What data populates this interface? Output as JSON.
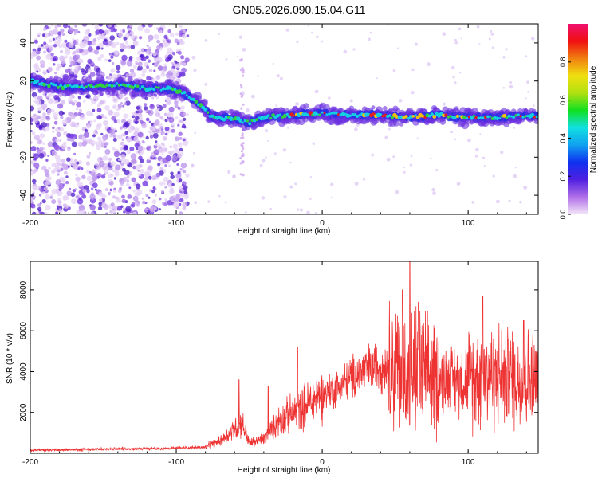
{
  "title": "GN05.2026.090.15.04.G11",
  "chart_data": [
    {
      "type": "heatmap",
      "name": "spectrogram",
      "xlabel": "Height of straight line (km)",
      "ylabel": "Frequency (Hz)",
      "xlim": [
        -200,
        148
      ],
      "ylim": [
        -50,
        50
      ],
      "xticks": [
        -200,
        -100,
        0,
        100
      ],
      "yticks": [
        -40,
        -20,
        0,
        20,
        40
      ],
      "ridge": [
        {
          "x": -200,
          "y": 20
        },
        {
          "x": -180,
          "y": 17
        },
        {
          "x": -160,
          "y": 17
        },
        {
          "x": -140,
          "y": 18
        },
        {
          "x": -120,
          "y": 16
        },
        {
          "x": -105,
          "y": 16
        },
        {
          "x": -95,
          "y": 14
        },
        {
          "x": -85,
          "y": 8
        },
        {
          "x": -75,
          "y": 1
        },
        {
          "x": -60,
          "y": 0
        },
        {
          "x": -50,
          "y": -2
        },
        {
          "x": -40,
          "y": 1
        },
        {
          "x": -20,
          "y": 2
        },
        {
          "x": 0,
          "y": 3
        },
        {
          "x": 20,
          "y": 2
        },
        {
          "x": 40,
          "y": 2
        },
        {
          "x": 60,
          "y": 1
        },
        {
          "x": 80,
          "y": 2
        },
        {
          "x": 100,
          "y": 1
        },
        {
          "x": 120,
          "y": 1
        },
        {
          "x": 148,
          "y": 2
        }
      ],
      "colorbar": {
        "label": "Normalized spectral amplitude",
        "range": [
          0.0,
          1.0
        ],
        "ticks": [
          "0.0",
          "0.2",
          "0.4",
          "0.6",
          "0.8"
        ],
        "colors": [
          "#f4e6f8",
          "#b070e8",
          "#5020e0",
          "#1030f0",
          "#10a0f0",
          "#10e0e0",
          "#10e020",
          "#b0e010",
          "#f0e010",
          "#f08010",
          "#f01010",
          "#f01070"
        ]
      },
      "colors": {
        "scatter": "#7a2fe0",
        "ridge_core": "#12d0e0",
        "ridge_hot": "#e02020",
        "ridge_mid": "#30d040"
      }
    },
    {
      "type": "line",
      "name": "snr",
      "xlabel": "Height of straight line (km)",
      "ylabel": "SNR (10 * v/v)",
      "xlim": [
        -200,
        148
      ],
      "ylim": [
        0,
        9400
      ],
      "xticks": [
        -200,
        -100,
        0,
        100
      ],
      "yticks": [
        2000,
        4000,
        6000,
        8000
      ],
      "color": "#ee3333",
      "trend": [
        {
          "x": -200,
          "y": 150
        },
        {
          "x": -150,
          "y": 200
        },
        {
          "x": -100,
          "y": 250
        },
        {
          "x": -80,
          "y": 300
        },
        {
          "x": -70,
          "y": 600
        },
        {
          "x": -60,
          "y": 1200
        },
        {
          "x": -55,
          "y": 1500
        },
        {
          "x": -50,
          "y": 500
        },
        {
          "x": -40,
          "y": 700
        },
        {
          "x": -30,
          "y": 1600
        },
        {
          "x": -20,
          "y": 2000
        },
        {
          "x": -10,
          "y": 2400
        },
        {
          "x": 0,
          "y": 2900
        },
        {
          "x": 10,
          "y": 3200
        },
        {
          "x": 20,
          "y": 3700
        },
        {
          "x": 30,
          "y": 4100
        },
        {
          "x": 40,
          "y": 4300
        },
        {
          "x": 50,
          "y": 4200
        },
        {
          "x": 60,
          "y": 4000
        },
        {
          "x": 70,
          "y": 3900
        },
        {
          "x": 80,
          "y": 3700
        },
        {
          "x": 90,
          "y": 3600
        },
        {
          "x": 100,
          "y": 3700
        },
        {
          "x": 110,
          "y": 3900
        },
        {
          "x": 120,
          "y": 3800
        },
        {
          "x": 130,
          "y": 3700
        },
        {
          "x": 148,
          "y": 3600
        }
      ],
      "spikes": [
        {
          "x": -57,
          "y": 3600
        },
        {
          "x": -37,
          "y": 3300
        },
        {
          "x": -17,
          "y": 5200
        },
        {
          "x": 55,
          "y": 8000
        },
        {
          "x": 60,
          "y": 9400
        },
        {
          "x": 66,
          "y": 7400
        },
        {
          "x": 110,
          "y": 7700
        },
        {
          "x": 138,
          "y": 6500
        }
      ]
    }
  ]
}
